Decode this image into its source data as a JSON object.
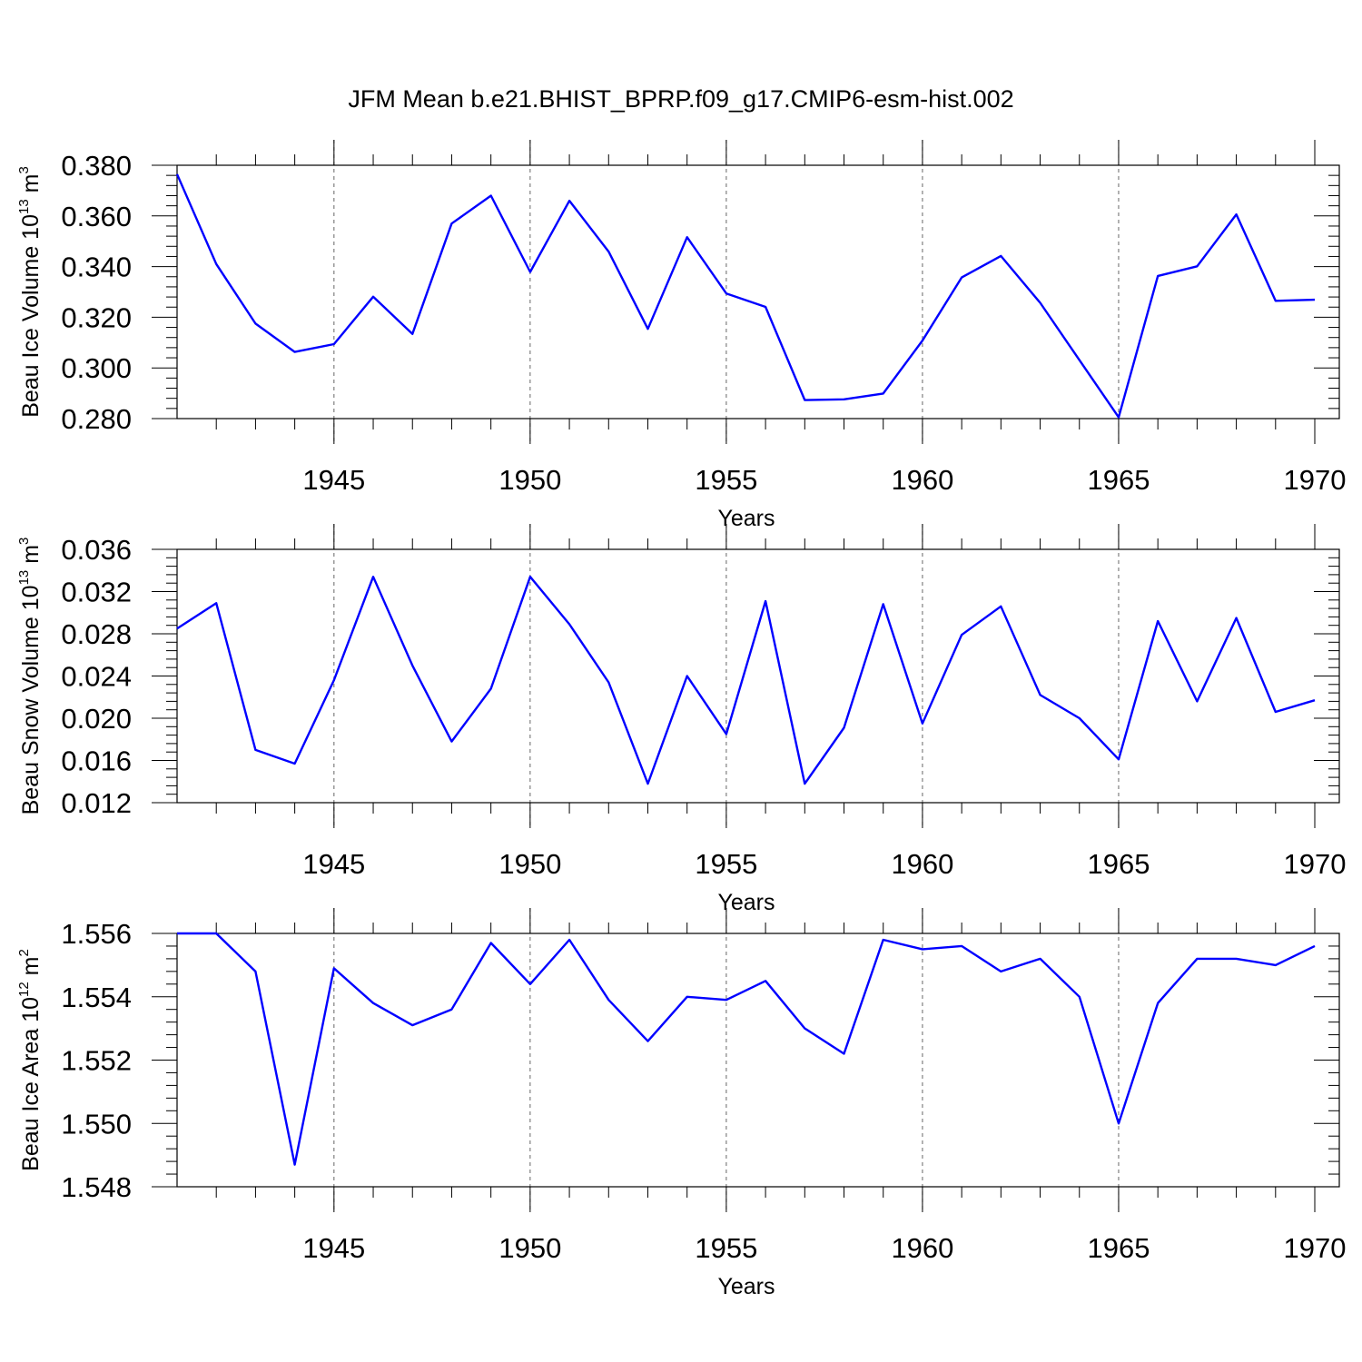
{
  "title": "JFM Mean b.e21.BHIST_BPRP.f09_g17.CMIP6-esm-hist.002",
  "colors": {
    "line": "#0000ff",
    "axis": "#000000",
    "gridline": "#666666"
  },
  "chart_data": [
    {
      "type": "line",
      "ylabel": {
        "text": "Beau Ice Volume 10",
        "exponent": "13",
        "unit": " m",
        "unit_exponent": "3"
      },
      "xlabel": "Years",
      "xlim": [
        1941,
        1970
      ],
      "ylim": [
        0.28,
        0.38
      ],
      "x_tick_values": [
        1945,
        1950,
        1955,
        1960,
        1965,
        1970
      ],
      "x_tick_labels": [
        "1945",
        "1950",
        "1955",
        "1960",
        "1965",
        "1970"
      ],
      "y_tick_values": [
        0.28,
        0.3,
        0.32,
        0.34,
        0.36,
        0.38
      ],
      "y_tick_labels": [
        "0.280",
        "0.300",
        "0.320",
        "0.340",
        "0.360",
        "0.380"
      ],
      "vertical_gridlines_at": [
        1945,
        1950,
        1955,
        1960,
        1965
      ],
      "x": [
        1941,
        1942,
        1943,
        1944,
        1945,
        1946,
        1947,
        1948,
        1949,
        1950,
        1951,
        1952,
        1953,
        1954,
        1955,
        1956,
        1957,
        1958,
        1959,
        1960,
        1961,
        1962,
        1963,
        1964,
        1965,
        1966,
        1967,
        1968,
        1969,
        1970
      ],
      "values": [
        0.3765,
        0.341,
        0.3175,
        0.3063,
        0.3094,
        0.3281,
        0.3134,
        0.357,
        0.368,
        0.3379,
        0.366,
        0.3459,
        0.3154,
        0.3516,
        0.3294,
        0.3241,
        0.2873,
        0.2876,
        0.2899,
        0.3108,
        0.3357,
        0.3442,
        0.3257,
        0.3031,
        0.2805,
        0.3363,
        0.3401,
        0.3606,
        0.3265,
        0.3269
      ]
    },
    {
      "type": "line",
      "ylabel": {
        "text": "Beau Snow Volume 10",
        "exponent": "13",
        "unit": " m",
        "unit_exponent": "3"
      },
      "xlabel": "Years",
      "xlim": [
        1941,
        1970
      ],
      "ylim": [
        0.012,
        0.036
      ],
      "x_tick_values": [
        1945,
        1950,
        1955,
        1960,
        1965,
        1970
      ],
      "x_tick_labels": [
        "1945",
        "1950",
        "1955",
        "1960",
        "1965",
        "1970"
      ],
      "y_tick_values": [
        0.012,
        0.016,
        0.02,
        0.024,
        0.028,
        0.032,
        0.036
      ],
      "y_tick_labels": [
        "0.012",
        "0.016",
        "0.020",
        "0.024",
        "0.028",
        "0.032",
        "0.036"
      ],
      "vertical_gridlines_at": [
        1945,
        1950,
        1955,
        1960,
        1965
      ],
      "x": [
        1941,
        1942,
        1943,
        1944,
        1945,
        1946,
        1947,
        1948,
        1949,
        1950,
        1951,
        1952,
        1953,
        1954,
        1955,
        1956,
        1957,
        1958,
        1959,
        1960,
        1961,
        1962,
        1963,
        1964,
        1965,
        1966,
        1967,
        1968,
        1969,
        1970
      ],
      "values": [
        0.0285,
        0.0309,
        0.017,
        0.0157,
        0.0236,
        0.0334,
        0.025,
        0.0178,
        0.0228,
        0.0334,
        0.0289,
        0.0234,
        0.0138,
        0.024,
        0.0185,
        0.0311,
        0.0138,
        0.0191,
        0.0308,
        0.0195,
        0.0279,
        0.0306,
        0.0222,
        0.02,
        0.0161,
        0.0292,
        0.0216,
        0.0295,
        0.0206,
        0.0217
      ]
    },
    {
      "type": "line",
      "ylabel": {
        "text": "Beau Ice Area 10",
        "exponent": "12",
        "unit": " m",
        "unit_exponent": "2"
      },
      "xlabel": "Years",
      "xlim": [
        1941,
        1970
      ],
      "ylim": [
        1.548,
        1.556
      ],
      "x_tick_values": [
        1945,
        1950,
        1955,
        1960,
        1965,
        1970
      ],
      "x_tick_labels": [
        "1945",
        "1950",
        "1955",
        "1960",
        "1965",
        "1970"
      ],
      "y_tick_values": [
        1.548,
        1.55,
        1.552,
        1.554,
        1.556
      ],
      "y_tick_labels": [
        "1.548",
        "1.550",
        "1.552",
        "1.554",
        "1.556"
      ],
      "vertical_gridlines_at": [
        1945,
        1950,
        1955,
        1960,
        1965
      ],
      "x": [
        1941,
        1942,
        1943,
        1944,
        1945,
        1946,
        1947,
        1948,
        1949,
        1950,
        1951,
        1952,
        1953,
        1954,
        1955,
        1956,
        1957,
        1958,
        1959,
        1960,
        1961,
        1962,
        1963,
        1964,
        1965,
        1966,
        1967,
        1968,
        1969,
        1970
      ],
      "values": [
        1.556,
        1.556,
        1.5548,
        1.5487,
        1.5549,
        1.5538,
        1.5531,
        1.5536,
        1.5557,
        1.5544,
        1.5558,
        1.5539,
        1.5526,
        1.554,
        1.5539,
        1.5545,
        1.553,
        1.5522,
        1.5558,
        1.5555,
        1.5556,
        1.5548,
        1.5552,
        1.554,
        1.55,
        1.5538,
        1.5552,
        1.5552,
        1.555,
        1.5556
      ]
    }
  ]
}
